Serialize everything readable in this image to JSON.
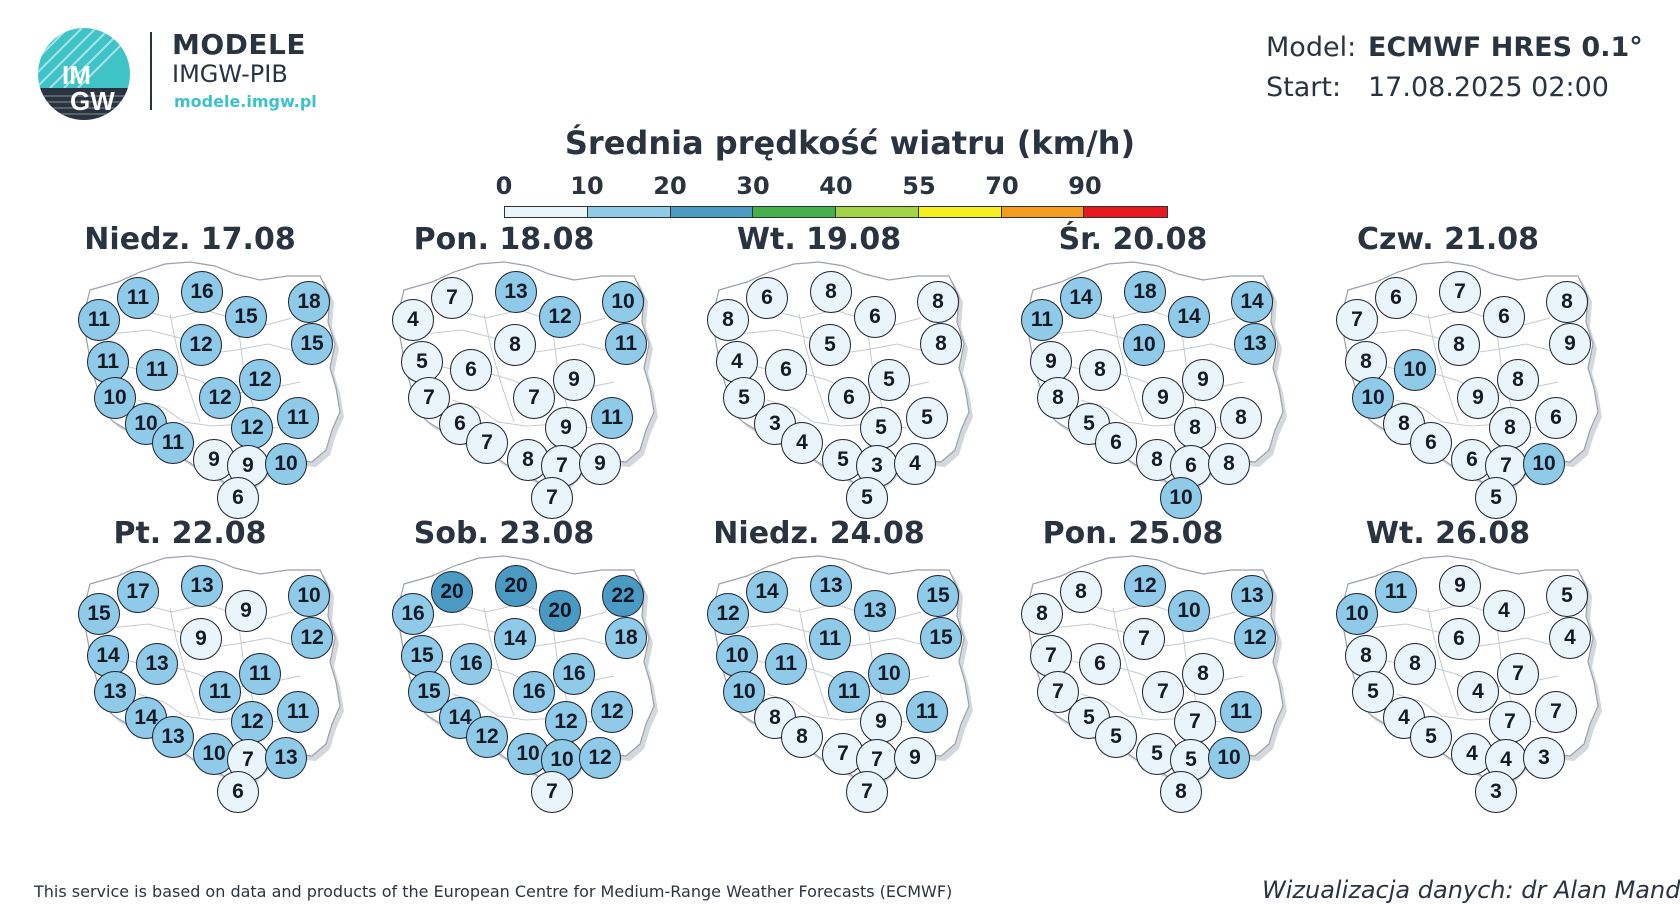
{
  "brand": {
    "logo_text_top": "IM",
    "logo_text_bottom": "GW",
    "title": "MODELE",
    "subtitle": "IMGW-PIB",
    "url": "modele.imgw.pl"
  },
  "model": {
    "model_label": "Model:",
    "model_value": "ECMWF HRES 0.1°",
    "start_label": "Start:",
    "start_value": "17.08.2025 02:00"
  },
  "title": "Średnia prędkość wiatru (km/h)",
  "legend": {
    "ticks": [
      "0",
      "10",
      "20",
      "30",
      "40",
      "55",
      "70",
      "90"
    ],
    "colors": [
      "#e9f4fb",
      "#8fcae9",
      "#4b9ac4",
      "#46b04a",
      "#a3d447",
      "#f5ef1e",
      "#f39c1e",
      "#e8191e"
    ]
  },
  "days": [
    {
      "title": "Niedz. 17.08",
      "values": [
        11,
        16,
        11,
        15,
        18,
        15,
        11,
        11,
        12,
        12,
        10,
        12,
        10,
        12,
        11,
        11,
        9,
        9,
        10,
        6
      ]
    },
    {
      "title": "Pon. 18.08",
      "values": [
        7,
        13,
        4,
        12,
        10,
        11,
        5,
        6,
        8,
        9,
        7,
        7,
        6,
        9,
        11,
        7,
        8,
        7,
        9,
        7
      ]
    },
    {
      "title": "Wt. 19.08",
      "values": [
        6,
        8,
        8,
        6,
        8,
        8,
        4,
        6,
        5,
        5,
        5,
        6,
        3,
        5,
        5,
        4,
        5,
        3,
        4,
        5
      ]
    },
    {
      "title": "Śr. 20.08",
      "values": [
        14,
        18,
        11,
        14,
        14,
        13,
        9,
        8,
        10,
        9,
        8,
        9,
        5,
        8,
        8,
        6,
        8,
        6,
        8,
        10
      ]
    },
    {
      "title": "Czw. 21.08",
      "values": [
        6,
        7,
        7,
        6,
        8,
        9,
        8,
        10,
        8,
        8,
        10,
        9,
        8,
        8,
        6,
        6,
        6,
        7,
        10,
        5
      ]
    },
    {
      "title": "Pt. 22.08",
      "values": [
        17,
        13,
        15,
        9,
        10,
        12,
        14,
        13,
        9,
        11,
        13,
        11,
        14,
        12,
        11,
        13,
        10,
        7,
        13,
        6
      ]
    },
    {
      "title": "Sob. 23.08",
      "values": [
        20,
        20,
        16,
        20,
        22,
        18,
        15,
        16,
        14,
        16,
        15,
        16,
        14,
        12,
        12,
        12,
        10,
        10,
        12,
        7
      ]
    },
    {
      "title": "Niedz. 24.08",
      "values": [
        14,
        13,
        12,
        13,
        15,
        15,
        10,
        11,
        11,
        10,
        10,
        11,
        8,
        9,
        11,
        8,
        7,
        7,
        9,
        7
      ]
    },
    {
      "title": "Pon. 25.08",
      "values": [
        8,
        12,
        8,
        10,
        13,
        12,
        7,
        6,
        7,
        8,
        7,
        7,
        5,
        7,
        11,
        5,
        5,
        5,
        10,
        8
      ]
    },
    {
      "title": "Wt. 26.08",
      "values": [
        11,
        9,
        10,
        4,
        5,
        4,
        8,
        8,
        6,
        7,
        5,
        4,
        4,
        7,
        7,
        5,
        4,
        4,
        3,
        3
      ]
    }
  ],
  "footer": {
    "left": "This service is based on data and products of the European Centre for Medium-Range Weather Forecasts (ECMWF)",
    "right": "Wizualizacja danych: dr Alan Mandal"
  }
}
